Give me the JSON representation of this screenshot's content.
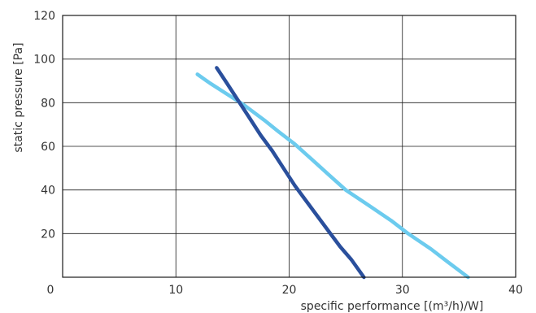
{
  "chart_data": {
    "type": "line",
    "xlabel": "specific performance [(m³/h)/W]",
    "ylabel": "static pressure [Pa]",
    "xlim": [
      0,
      40
    ],
    "ylim": [
      0,
      120
    ],
    "x_ticks": [
      0,
      10,
      20,
      30,
      40
    ],
    "y_ticks": [
      20,
      40,
      60,
      80,
      100,
      120
    ],
    "grid": true,
    "legend": "none",
    "series": [
      {
        "color": "#6ccbee",
        "points": [
          [
            11.9,
            93
          ],
          [
            13.0,
            89
          ],
          [
            14.5,
            84
          ],
          [
            16.0,
            79
          ],
          [
            17.8,
            72
          ],
          [
            19.0,
            67
          ],
          [
            20.5,
            61
          ],
          [
            22.0,
            54
          ],
          [
            23.5,
            47
          ],
          [
            25.0,
            40
          ],
          [
            27.0,
            33
          ],
          [
            29.0,
            26
          ],
          [
            30.5,
            20
          ],
          [
            32.5,
            13
          ],
          [
            34.0,
            7
          ],
          [
            35.8,
            0
          ]
        ]
      },
      {
        "color": "#2a4f9c",
        "points": [
          [
            13.6,
            96
          ],
          [
            14.5,
            89
          ],
          [
            15.5,
            81
          ],
          [
            16.5,
            73
          ],
          [
            17.5,
            65
          ],
          [
            18.5,
            58
          ],
          [
            19.5,
            50
          ],
          [
            20.5,
            42
          ],
          [
            21.5,
            35
          ],
          [
            22.5,
            28
          ],
          [
            23.5,
            21
          ],
          [
            24.5,
            14
          ],
          [
            25.5,
            8
          ],
          [
            26.6,
            0
          ]
        ]
      }
    ]
  }
}
